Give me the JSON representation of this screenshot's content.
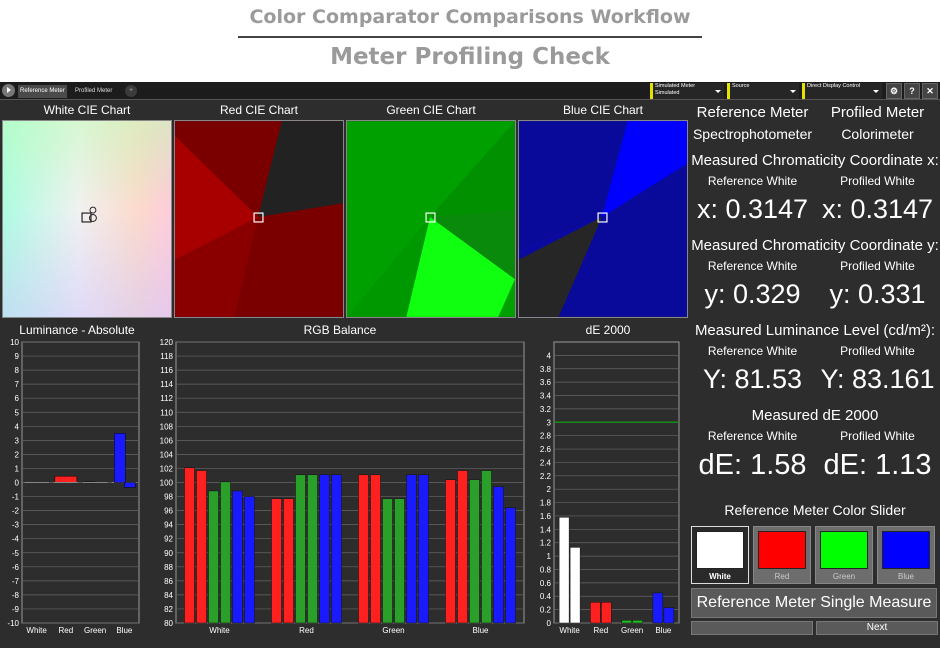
{
  "header": {
    "title": "Color Comparator Comparisons Workflow",
    "subtitle": "Meter Profiling Check"
  },
  "toolbar": {
    "tabs": [
      "Reference Meter",
      "Profiled Meter"
    ],
    "add_tab": "+",
    "dropdowns": [
      {
        "line1": "Simulated Meter",
        "line2": "Simulated"
      },
      {
        "line1": "Source",
        "line2": ""
      },
      {
        "line1": "Direct Display Control",
        "line2": ""
      }
    ],
    "icons": {
      "settings": "⚙",
      "help": "?",
      "close": "✕"
    }
  },
  "cie_charts": {
    "white": "White CIE Chart",
    "red": "Red CIE Chart",
    "green": "Green CIE Chart",
    "blue": "Blue CIE Chart"
  },
  "chart_data": [
    {
      "type": "bar",
      "title": "Luminance - Absolute",
      "categories": [
        "White",
        "Red",
        "Green",
        "Blue"
      ],
      "series": [
        {
          "color": "#ffffff",
          "values": [
            0.0,
            0.0,
            0.0,
            0.0
          ]
        },
        {
          "color": "#ff2020",
          "values": [
            0.0,
            0.45,
            0.0,
            0.0
          ]
        },
        {
          "color": "#20b020",
          "values": [
            0.0,
            0.0,
            0.05,
            0.0
          ]
        },
        {
          "color": "#1a1aff",
          "values": [
            0.0,
            0.0,
            0.0,
            3.5
          ]
        },
        {
          "color": "#1a1aff",
          "values": [
            0.0,
            0.0,
            0.0,
            -0.35
          ]
        }
      ],
      "ylim": [
        -10,
        10
      ],
      "yticks": [
        10,
        9,
        8,
        7,
        6,
        5,
        4,
        3,
        2,
        1,
        0,
        -1,
        -2,
        -3,
        -4,
        -5,
        -6,
        -7,
        -8,
        -9,
        -10
      ],
      "grid": true
    },
    {
      "type": "bar",
      "title": "RGB Balance",
      "categories": [
        "White",
        "Red",
        "Green",
        "Blue"
      ],
      "groups": [
        {
          "category": "White",
          "bars": [
            {
              "color": "#ff2020",
              "value": 102.1
            },
            {
              "color": "#ff2020",
              "value": 101.7
            },
            {
              "color": "#2aa02a",
              "value": 98.8
            },
            {
              "color": "#2aa02a",
              "value": 100.1
            },
            {
              "color": "#1a1aff",
              "value": 98.8
            },
            {
              "color": "#1a1aff",
              "value": 98.0
            }
          ]
        },
        {
          "category": "Red",
          "bars": [
            {
              "color": "#ff2020",
              "value": 97.7
            },
            {
              "color": "#ff2020",
              "value": 97.7
            },
            {
              "color": "#2aa02a",
              "value": 101.1
            },
            {
              "color": "#2aa02a",
              "value": 101.1
            },
            {
              "color": "#1a1aff",
              "value": 101.1
            },
            {
              "color": "#1a1aff",
              "value": 101.1
            }
          ]
        },
        {
          "category": "Green",
          "bars": [
            {
              "color": "#ff2020",
              "value": 101.1
            },
            {
              "color": "#ff2020",
              "value": 101.1
            },
            {
              "color": "#2aa02a",
              "value": 97.7
            },
            {
              "color": "#2aa02a",
              "value": 97.7
            },
            {
              "color": "#1a1aff",
              "value": 101.1
            },
            {
              "color": "#1a1aff",
              "value": 101.1
            }
          ]
        },
        {
          "category": "Blue",
          "bars": [
            {
              "color": "#ff2020",
              "value": 100.4
            },
            {
              "color": "#ff2020",
              "value": 101.7
            },
            {
              "color": "#2aa02a",
              "value": 100.4
            },
            {
              "color": "#2aa02a",
              "value": 101.7
            },
            {
              "color": "#1a1aff",
              "value": 99.4
            },
            {
              "color": "#1a1aff",
              "value": 96.4
            }
          ]
        }
      ],
      "ylim": [
        80,
        120
      ],
      "yticks": [
        120,
        118,
        116,
        114,
        112,
        110,
        108,
        106,
        104,
        102,
        100,
        98,
        96,
        94,
        92,
        90,
        88,
        86,
        84,
        82,
        80
      ],
      "grid": true
    },
    {
      "type": "bar",
      "title": "dE 2000",
      "categories": [
        "White",
        "Red",
        "Green",
        "Blue"
      ],
      "groups": [
        {
          "category": "White",
          "bars": [
            {
              "color": "#ffffff",
              "value": 1.58
            },
            {
              "color": "#ffffff",
              "value": 1.13
            }
          ]
        },
        {
          "category": "Red",
          "bars": [
            {
              "color": "#ff2020",
              "value": 0.31
            },
            {
              "color": "#ff2020",
              "value": 0.31
            }
          ]
        },
        {
          "category": "Green",
          "bars": [
            {
              "color": "#20c020",
              "value": 0.04
            },
            {
              "color": "#20c020",
              "value": 0.04
            }
          ]
        },
        {
          "category": "Blue",
          "bars": [
            {
              "color": "#1a1aff",
              "value": 0.45
            },
            {
              "color": "#1a1aff",
              "value": 0.23
            }
          ]
        }
      ],
      "threshold": 3,
      "ylim": [
        0,
        4.2
      ],
      "yticks": [
        4,
        3.8,
        3.6,
        3.4,
        3.2,
        3,
        2.8,
        2.6,
        2.4,
        2.2,
        2,
        1.8,
        1.6,
        1.4,
        1.2,
        1,
        0.8,
        0.6,
        0.4,
        0.2,
        0
      ],
      "grid": true
    }
  ],
  "right_panel": {
    "ref_meter": "Reference Meter",
    "ref_type": "Spectrophotometer",
    "prof_meter": "Profiled Meter",
    "prof_type": "Colorimeter",
    "x_title": "Measured Chromaticity Coordinate x:",
    "y_title": "Measured Chromaticity Coordinate y:",
    "lum_title": "Measured Luminance Level (cd/m²):",
    "de_title": "Measured dE 2000",
    "ref_white": "Reference White",
    "prof_white": "Profiled White",
    "x_ref": "x: 0.3147",
    "x_prof": "x: 0.3147",
    "y_ref": "y: 0.329",
    "y_prof": "y: 0.331",
    "lum_ref": "Y: 81.53",
    "lum_prof": "Y: 83.161",
    "de_ref": "dE: 1.58",
    "de_prof": "dE: 1.13",
    "slider_title": "Reference Meter Color Slider",
    "swatches": [
      {
        "label": "White",
        "color": "#ffffff"
      },
      {
        "label": "Red",
        "color": "#ff0000"
      },
      {
        "label": "Green",
        "color": "#00ff00"
      },
      {
        "label": "Blue",
        "color": "#0000ff"
      }
    ],
    "measure_button": "Reference Meter Single Measure",
    "next_button": "Next"
  }
}
